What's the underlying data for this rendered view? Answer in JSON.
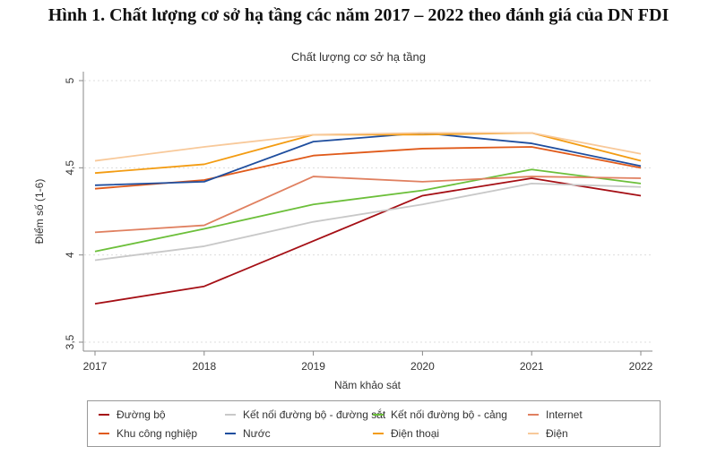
{
  "figure_title": "Hình 1. Chất lượng cơ sở hạ tầng các năm 2017 – 2022 theo đánh giá của DN FDI",
  "chart_data": {
    "type": "line",
    "title": "Chất lượng cơ sở hạ tầng",
    "xlabel": "Năm khảo sát",
    "ylabel": "Điểm số (1-6)",
    "x": [
      2017,
      2018,
      2019,
      2020,
      2021,
      2022
    ],
    "xticks": [
      "2017",
      "2018",
      "2019",
      "2020",
      "2021",
      "2022"
    ],
    "yticks": [
      "3,5",
      "4",
      "4,5",
      "5"
    ],
    "ytick_values": [
      3.5,
      4,
      4.5,
      5
    ],
    "ylim": [
      3.5,
      5
    ],
    "grid": "horizontal dotted",
    "legend_position": "bottom",
    "series": [
      {
        "name": "Đường bộ",
        "color": "#a50f15",
        "values": [
          3.72,
          3.82,
          4.08,
          4.34,
          4.44,
          4.34
        ]
      },
      {
        "name": "Kết nối đường bộ - đường sắt",
        "color": "#c8c8c8",
        "values": [
          3.97,
          4.05,
          4.19,
          4.29,
          4.41,
          4.39
        ]
      },
      {
        "name": "Kết nối đường bộ - cảng",
        "color": "#6cbf3a",
        "values": [
          4.02,
          4.15,
          4.29,
          4.37,
          4.49,
          4.41
        ]
      },
      {
        "name": "Internet",
        "color": "#e08060",
        "values": [
          4.13,
          4.17,
          4.45,
          4.42,
          4.45,
          4.44
        ]
      },
      {
        "name": "Khu công nghiệp",
        "color": "#e05a1a",
        "values": [
          4.38,
          4.43,
          4.57,
          4.61,
          4.62,
          4.5
        ]
      },
      {
        "name": "Nước",
        "color": "#1f4e9e",
        "values": [
          4.4,
          4.42,
          4.65,
          4.7,
          4.64,
          4.51
        ]
      },
      {
        "name": "Điện thoại",
        "color": "#f39c12",
        "values": [
          4.47,
          4.52,
          4.69,
          4.69,
          4.7,
          4.54
        ]
      },
      {
        "name": "Điện",
        "color": "#f8c99a",
        "values": [
          4.54,
          4.62,
          4.69,
          4.7,
          4.7,
          4.58
        ]
      }
    ]
  }
}
